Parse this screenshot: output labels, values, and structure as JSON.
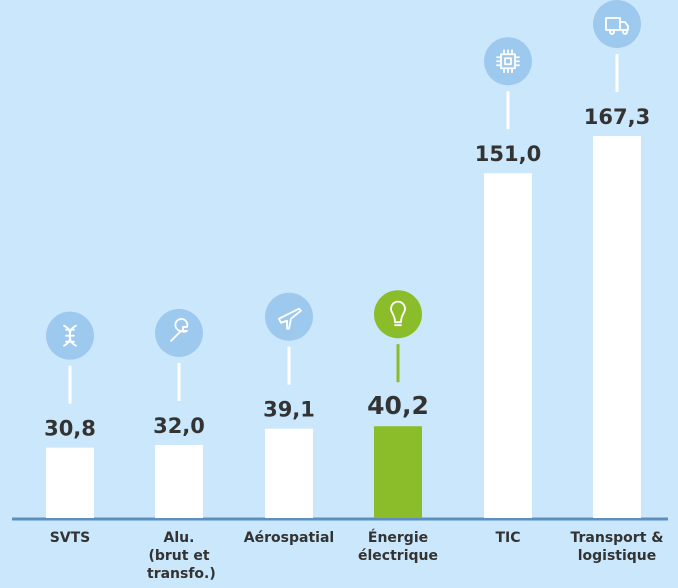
{
  "chart_data": {
    "type": "bar",
    "categories": [
      "SVTS",
      "Alu. (brut et transfo.)",
      "Aérospatial",
      "Énergie électrique",
      "TIC",
      "Transport & logistique"
    ],
    "values": [
      30.8,
      32.0,
      39.1,
      40.2,
      151.0,
      167.3
    ],
    "value_labels": [
      "30,8",
      "32,0",
      "39,1",
      "40,2",
      "151,0",
      "167,3"
    ],
    "colors": [
      "#ffffff",
      "#ffffff",
      "#ffffff",
      "#8bbd2a",
      "#ffffff",
      "#ffffff"
    ]
  }
}
